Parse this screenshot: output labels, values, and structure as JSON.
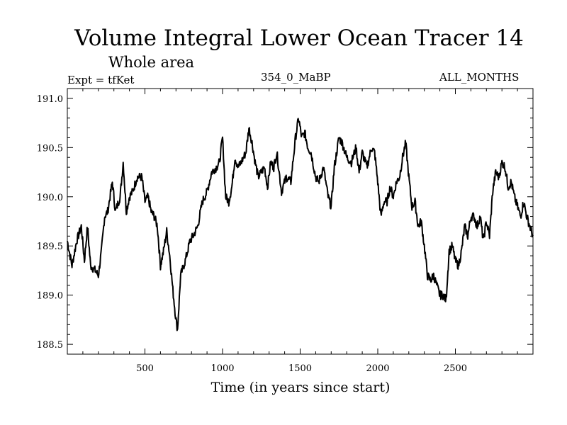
{
  "chart_data": {
    "type": "line",
    "title": "Volume Integral Lower Ocean Tracer 14",
    "subtitle": "Whole area",
    "expt_label": "Expt = tfKet",
    "center_label": "354_0_MaBP",
    "right_label": "ALL_MONTHS",
    "xlabel": "Time (in years since start)",
    "ylabel": "",
    "xlim": [
      0,
      3000
    ],
    "ylim": [
      188.4,
      191.1
    ],
    "x_ticks": [
      500,
      1000,
      1500,
      2000,
      2500
    ],
    "y_ticks": [
      188.5,
      189.0,
      189.5,
      190.0,
      190.5,
      191.0
    ],
    "y_tick_labels": [
      "188.5",
      "189.0",
      "189.5",
      "190.0",
      "190.5",
      "191.0"
    ],
    "x_tick_labels": [
      "500",
      "1000",
      "1500",
      "2000",
      "2500"
    ],
    "grid": false,
    "legend": "none",
    "line_color": "#000000",
    "series": [
      {
        "x": [
          0,
          30,
          60,
          90,
          110,
          130,
          150,
          180,
          200,
          220,
          240,
          260,
          290,
          310,
          340,
          360,
          380,
          400,
          420,
          450,
          480,
          500,
          520,
          540,
          560,
          580,
          600,
          620,
          640,
          660,
          680,
          700,
          710,
          730,
          760,
          790,
          810,
          840,
          870,
          900,
          930,
          960,
          980,
          1000,
          1020,
          1040,
          1060,
          1080,
          1100,
          1120,
          1150,
          1170,
          1190,
          1210,
          1230,
          1250,
          1270,
          1290,
          1310,
          1330,
          1350,
          1380,
          1410,
          1440,
          1470,
          1490,
          1510,
          1530,
          1550,
          1570,
          1600,
          1620,
          1650,
          1680,
          1700,
          1720,
          1750,
          1770,
          1800,
          1830,
          1860,
          1880,
          1900,
          1930,
          1960,
          1980,
          2000,
          2020,
          2040,
          2060,
          2080,
          2100,
          2120,
          2140,
          2160,
          2180,
          2200,
          2220,
          2240,
          2260,
          2280,
          2300,
          2320,
          2340,
          2360,
          2380,
          2400,
          2420,
          2440,
          2460,
          2480,
          2500,
          2520,
          2540,
          2560,
          2580,
          2600,
          2620,
          2640,
          2660,
          2680,
          2700,
          2720,
          2740,
          2760,
          2780,
          2800,
          2820,
          2840,
          2860,
          2880,
          2900,
          2920,
          2940,
          2960,
          2980,
          3000
        ],
        "values": [
          189.55,
          189.3,
          189.55,
          189.7,
          189.35,
          189.7,
          189.3,
          189.25,
          189.2,
          189.45,
          189.8,
          189.85,
          190.15,
          189.85,
          190.0,
          190.35,
          189.85,
          190.0,
          190.05,
          190.2,
          190.2,
          189.95,
          190.0,
          189.85,
          189.8,
          189.7,
          189.3,
          189.45,
          189.65,
          189.4,
          189.05,
          188.75,
          188.65,
          189.2,
          189.35,
          189.55,
          189.6,
          189.7,
          189.95,
          190.05,
          190.25,
          190.3,
          190.35,
          190.6,
          190.0,
          189.95,
          190.1,
          190.4,
          190.3,
          190.35,
          190.45,
          190.7,
          190.55,
          190.35,
          190.2,
          190.25,
          190.3,
          190.1,
          190.35,
          190.3,
          190.45,
          190.05,
          190.2,
          190.15,
          190.6,
          190.8,
          190.6,
          190.65,
          190.5,
          190.45,
          190.2,
          190.15,
          190.3,
          190.0,
          189.9,
          190.3,
          190.6,
          190.55,
          190.4,
          190.35,
          190.5,
          190.25,
          190.45,
          190.3,
          190.5,
          190.45,
          190.15,
          189.8,
          189.95,
          189.95,
          190.1,
          190.0,
          190.15,
          190.2,
          190.4,
          190.55,
          190.2,
          189.9,
          189.95,
          189.7,
          189.75,
          189.5,
          189.2,
          189.15,
          189.2,
          189.1,
          189.0,
          189.0,
          188.95,
          189.45,
          189.5,
          189.35,
          189.3,
          189.45,
          189.7,
          189.6,
          189.8,
          189.8,
          189.7,
          189.8,
          189.55,
          189.75,
          189.6,
          190.05,
          190.25,
          190.2,
          190.35,
          190.3,
          190.1,
          190.15,
          190.0,
          189.9,
          189.8,
          189.95,
          189.8,
          189.7,
          189.6
        ]
      }
    ]
  }
}
